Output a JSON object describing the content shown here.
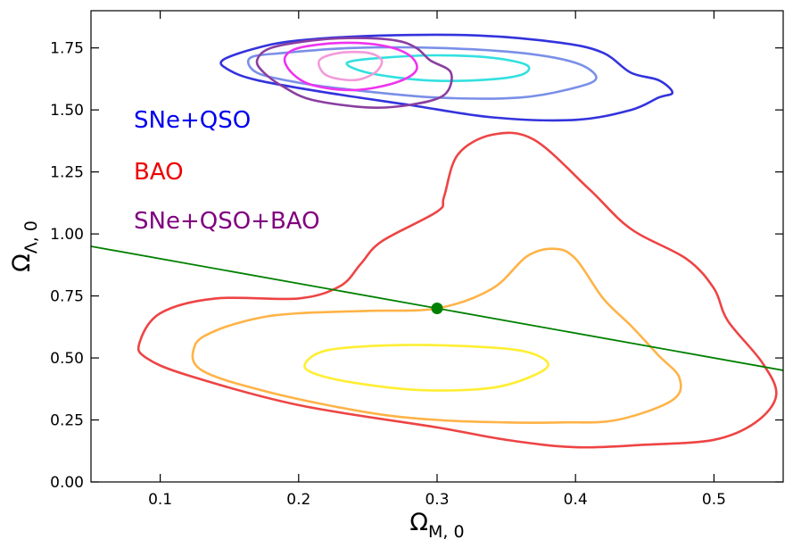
{
  "chart_data": {
    "type": "contour",
    "xlabel": "Ω",
    "xlabel_sub": "M, 0",
    "ylabel": "Ω",
    "ylabel_sub": "Λ, 0",
    "xlim": [
      0.05,
      0.55
    ],
    "ylim": [
      0.0,
      1.9
    ],
    "xticks": [
      0.1,
      0.2,
      0.3,
      0.4,
      0.5
    ],
    "xtick_labels": [
      "0.1",
      "0.2",
      "0.3",
      "0.4",
      "0.5"
    ],
    "yticks": [
      0.0,
      0.25,
      0.5,
      0.75,
      1.0,
      1.25,
      1.5,
      1.75
    ],
    "ytick_labels": [
      "0.00",
      "0.25",
      "0.50",
      "0.75",
      "1.00",
      "1.25",
      "1.50",
      "1.75"
    ],
    "legend": [
      {
        "label": "SNe+QSO",
        "color": "#0000ee"
      },
      {
        "label": "BAO",
        "color": "#ee0000"
      },
      {
        "label": "SNe+QSO+BAO",
        "color": "#800080"
      }
    ],
    "flat_line": {
      "name": "flat-universe-line",
      "color": "#008000",
      "points": [
        [
          0.05,
          0.95
        ],
        [
          0.55,
          0.45
        ]
      ]
    },
    "marker": {
      "name": "reference-point",
      "color": "#008000",
      "x": 0.3,
      "y": 0.7
    },
    "contours": [
      {
        "name": "bao-3sigma",
        "color": "#ee4444",
        "points": [
          [
            0.085,
            0.56
          ],
          [
            0.09,
            0.5
          ],
          [
            0.12,
            0.43
          ],
          [
            0.2,
            0.31
          ],
          [
            0.3,
            0.22
          ],
          [
            0.35,
            0.17
          ],
          [
            0.4,
            0.14
          ],
          [
            0.45,
            0.15
          ],
          [
            0.5,
            0.17
          ],
          [
            0.53,
            0.24
          ],
          [
            0.545,
            0.35
          ],
          [
            0.535,
            0.48
          ],
          [
            0.51,
            0.65
          ],
          [
            0.5,
            0.78
          ],
          [
            0.48,
            0.9
          ],
          [
            0.44,
            1.02
          ],
          [
            0.41,
            1.18
          ],
          [
            0.37,
            1.38
          ],
          [
            0.34,
            1.4
          ],
          [
            0.315,
            1.32
          ],
          [
            0.305,
            1.15
          ],
          [
            0.3,
            1.09
          ],
          [
            0.26,
            0.97
          ],
          [
            0.245,
            0.88
          ],
          [
            0.23,
            0.79
          ],
          [
            0.2,
            0.74
          ],
          [
            0.14,
            0.74
          ],
          [
            0.1,
            0.68
          ],
          [
            0.085,
            0.56
          ]
        ]
      },
      {
        "name": "bao-2sigma",
        "color": "#ffb347",
        "points": [
          [
            0.125,
            0.55
          ],
          [
            0.14,
            0.61
          ],
          [
            0.17,
            0.66
          ],
          [
            0.2,
            0.68
          ],
          [
            0.25,
            0.69
          ],
          [
            0.3,
            0.7
          ],
          [
            0.34,
            0.78
          ],
          [
            0.365,
            0.91
          ],
          [
            0.385,
            0.94
          ],
          [
            0.4,
            0.9
          ],
          [
            0.42,
            0.74
          ],
          [
            0.44,
            0.63
          ],
          [
            0.46,
            0.51
          ],
          [
            0.475,
            0.42
          ],
          [
            0.47,
            0.33
          ],
          [
            0.43,
            0.25
          ],
          [
            0.39,
            0.24
          ],
          [
            0.35,
            0.24
          ],
          [
            0.3,
            0.25
          ],
          [
            0.25,
            0.28
          ],
          [
            0.18,
            0.36
          ],
          [
            0.13,
            0.45
          ],
          [
            0.125,
            0.55
          ]
        ]
      },
      {
        "name": "bao-1sigma",
        "color": "#ffee33",
        "points": [
          [
            0.205,
            0.48
          ],
          [
            0.22,
            0.53
          ],
          [
            0.26,
            0.55
          ],
          [
            0.31,
            0.55
          ],
          [
            0.36,
            0.53
          ],
          [
            0.38,
            0.48
          ],
          [
            0.37,
            0.43
          ],
          [
            0.34,
            0.38
          ],
          [
            0.29,
            0.37
          ],
          [
            0.24,
            0.4
          ],
          [
            0.21,
            0.44
          ],
          [
            0.205,
            0.48
          ]
        ]
      },
      {
        "name": "snqso-3sigma",
        "color": "#3333dd",
        "points": [
          [
            0.145,
            1.7
          ],
          [
            0.17,
            1.75
          ],
          [
            0.2,
            1.78
          ],
          [
            0.26,
            1.8
          ],
          [
            0.33,
            1.8
          ],
          [
            0.39,
            1.77
          ],
          [
            0.42,
            1.73
          ],
          [
            0.44,
            1.65
          ],
          [
            0.46,
            1.62
          ],
          [
            0.47,
            1.57
          ],
          [
            0.46,
            1.55
          ],
          [
            0.44,
            1.5
          ],
          [
            0.4,
            1.46
          ],
          [
            0.34,
            1.47
          ],
          [
            0.28,
            1.52
          ],
          [
            0.22,
            1.57
          ],
          [
            0.17,
            1.62
          ],
          [
            0.15,
            1.66
          ],
          [
            0.145,
            1.7
          ]
        ]
      },
      {
        "name": "snqso-2sigma",
        "color": "#7a8fe8",
        "points": [
          [
            0.165,
            1.71
          ],
          [
            0.19,
            1.73
          ],
          [
            0.24,
            1.75
          ],
          [
            0.3,
            1.75
          ],
          [
            0.36,
            1.73
          ],
          [
            0.4,
            1.69
          ],
          [
            0.415,
            1.63
          ],
          [
            0.4,
            1.59
          ],
          [
            0.36,
            1.55
          ],
          [
            0.3,
            1.55
          ],
          [
            0.24,
            1.58
          ],
          [
            0.2,
            1.61
          ],
          [
            0.17,
            1.65
          ],
          [
            0.165,
            1.71
          ]
        ]
      },
      {
        "name": "snqso-1sigma",
        "color": "#33e0e0",
        "points": [
          [
            0.235,
            1.69
          ],
          [
            0.26,
            1.71
          ],
          [
            0.3,
            1.72
          ],
          [
            0.34,
            1.71
          ],
          [
            0.365,
            1.68
          ],
          [
            0.36,
            1.64
          ],
          [
            0.33,
            1.62
          ],
          [
            0.29,
            1.62
          ],
          [
            0.25,
            1.65
          ],
          [
            0.235,
            1.69
          ]
        ]
      },
      {
        "name": "combined-3sigma",
        "color": "#8a3fa0",
        "points": [
          [
            0.17,
            1.7
          ],
          [
            0.18,
            1.75
          ],
          [
            0.21,
            1.78
          ],
          [
            0.24,
            1.79
          ],
          [
            0.27,
            1.78
          ],
          [
            0.285,
            1.75
          ],
          [
            0.295,
            1.7
          ],
          [
            0.31,
            1.65
          ],
          [
            0.305,
            1.56
          ],
          [
            0.28,
            1.52
          ],
          [
            0.25,
            1.51
          ],
          [
            0.21,
            1.54
          ],
          [
            0.19,
            1.59
          ],
          [
            0.175,
            1.65
          ],
          [
            0.17,
            1.7
          ]
        ]
      },
      {
        "name": "combined-2sigma",
        "color": "#ee33ee",
        "points": [
          [
            0.19,
            1.71
          ],
          [
            0.2,
            1.75
          ],
          [
            0.23,
            1.77
          ],
          [
            0.26,
            1.76
          ],
          [
            0.28,
            1.72
          ],
          [
            0.285,
            1.66
          ],
          [
            0.27,
            1.61
          ],
          [
            0.24,
            1.58
          ],
          [
            0.21,
            1.6
          ],
          [
            0.195,
            1.65
          ],
          [
            0.19,
            1.71
          ]
        ]
      },
      {
        "name": "combined-1sigma",
        "color": "#f39bd9",
        "points": [
          [
            0.215,
            1.7
          ],
          [
            0.23,
            1.73
          ],
          [
            0.25,
            1.73
          ],
          [
            0.26,
            1.7
          ],
          [
            0.255,
            1.65
          ],
          [
            0.24,
            1.62
          ],
          [
            0.22,
            1.64
          ],
          [
            0.215,
            1.7
          ]
        ]
      }
    ]
  }
}
